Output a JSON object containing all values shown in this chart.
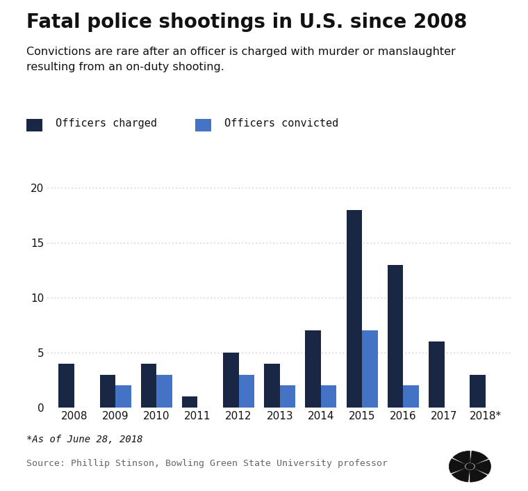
{
  "title": "Fatal police shootings in U.S. since 2008",
  "subtitle": "Convictions are rare after an officer is charged with murder or manslaughter\nresulting from an on-duty shooting.",
  "years": [
    "2008",
    "2009",
    "2010",
    "2011",
    "2012",
    "2013",
    "2014",
    "2015",
    "2016",
    "2017",
    "2018*"
  ],
  "charged": [
    4,
    3,
    4,
    1,
    5,
    4,
    7,
    18,
    13,
    6,
    3
  ],
  "convicted": [
    0,
    2,
    3,
    0,
    3,
    2,
    2,
    7,
    2,
    0,
    0
  ],
  "charged_color": "#1a2744",
  "convicted_color": "#4472c4",
  "background_color": "#ffffff",
  "ylim": [
    0,
    21
  ],
  "yticks": [
    0,
    5,
    10,
    15,
    20
  ],
  "legend_charged": "Officers charged",
  "legend_convicted": "Officers convicted",
  "footnote": "*As of June 28, 2018",
  "source": "Source: Phillip Stinson, Bowling Green State University professor",
  "title_fontsize": 20,
  "subtitle_fontsize": 11.5,
  "axis_fontsize": 11,
  "legend_fontsize": 11,
  "bar_width": 0.38,
  "grid_color": "#bbbbbb",
  "text_color": "#111111",
  "source_color": "#666666"
}
